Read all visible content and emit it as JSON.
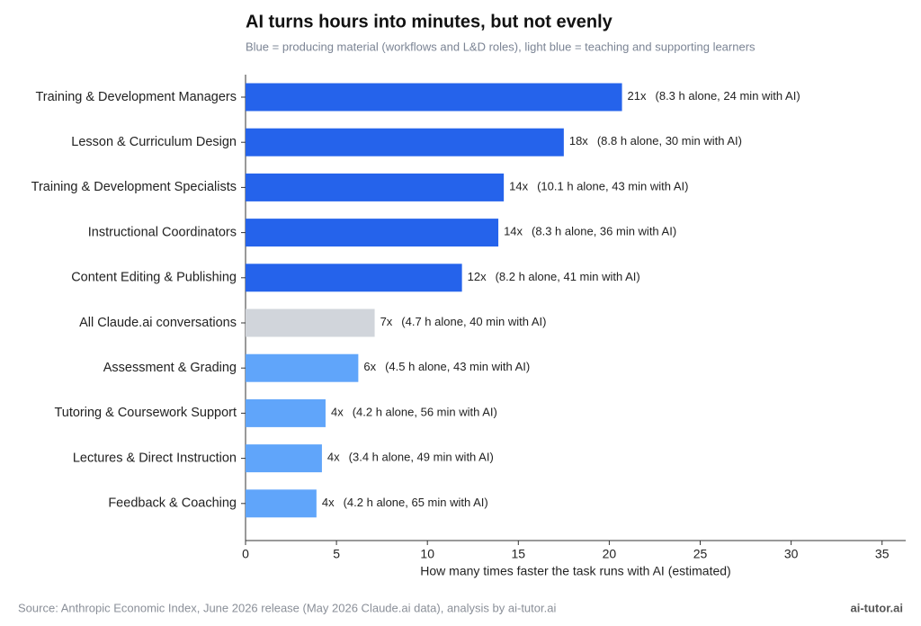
{
  "chart_data": {
    "type": "barh",
    "title": "AI turns hours into minutes, but not evenly",
    "subtitle": "Blue = producing material (workflows and L&D roles), light blue = teaching and supporting learners",
    "x_label": "How many times faster the task runs with AI (estimated)",
    "source": "Source: Anthropic Economic Index, June 2026 release (May 2026 Claude.ai data), analysis by ai-tutor.ai",
    "brand": "ai-tutor.ai",
    "categories": [
      "Training & Development Managers",
      "Lesson & Curriculum Design",
      "Training & Development Specialists",
      "Instructional Coordinators",
      "Content Editing & Publishing",
      "All Claude.ai conversations",
      "Assessment & Grading",
      "Tutoring & Coursework Support",
      "Lectures & Direct Instruction",
      "Feedback & Coaching"
    ],
    "values": [
      20.7,
      17.5,
      14.2,
      13.9,
      11.9,
      7.1,
      6.2,
      4.4,
      4.2,
      3.9
    ],
    "value_labels": [
      "21x",
      "18x",
      "14x",
      "14x",
      "12x",
      "7x",
      "6x",
      "4x",
      "4x",
      "4x"
    ],
    "annotations": [
      "(8.3 h alone, 24 min with AI)",
      "(8.8 h alone, 30 min with AI)",
      "(10.1 h alone, 43 min with AI)",
      "(8.3 h alone, 36 min with AI)",
      "(8.2 h alone, 41 min with AI)",
      "(4.7 h alone, 40 min with AI)",
      "(4.5 h alone, 43 min with AI)",
      "(4.2 h alone, 56 min with AI)",
      "(3.4 h alone, 49 min with AI)",
      "(4.2 h alone, 65 min with AI)"
    ],
    "colors": [
      "#2563eb",
      "#2563eb",
      "#2563eb",
      "#2563eb",
      "#2563eb",
      "#d1d5db",
      "#60a5fa",
      "#60a5fa",
      "#60a5fa",
      "#60a5fa"
    ],
    "xlim": [
      0,
      36.3
    ],
    "xticks": [
      0,
      5,
      10,
      15,
      20,
      25,
      30,
      35
    ],
    "grid": false
  }
}
